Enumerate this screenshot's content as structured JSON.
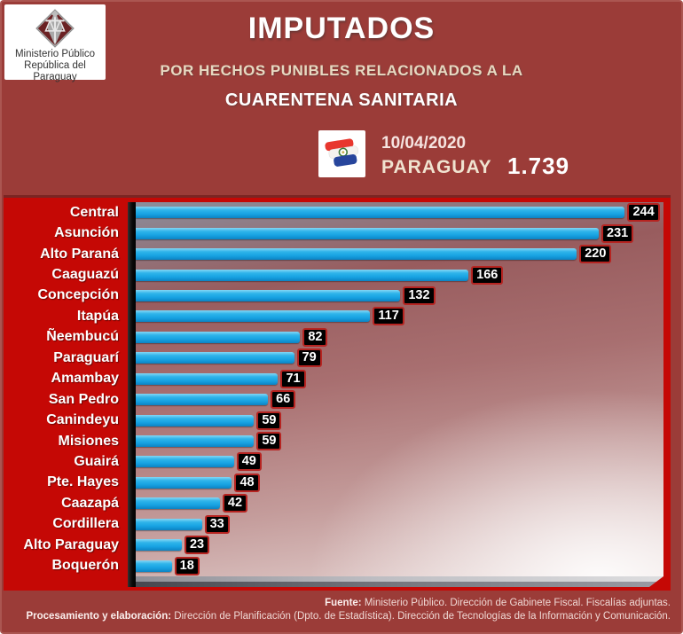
{
  "header": {
    "logo_line1": "Ministerio Público",
    "logo_line2": "República del Paraguay",
    "title": "IMPUTADOS",
    "subtitle1": "POR HECHOS PUNIBLES RELACIONADOS A LA",
    "subtitle2": "CUARENTENA SANITARIA",
    "date": "10/04/2020",
    "country_label": "PARAGUAY",
    "total": "1.739"
  },
  "chart_data": {
    "type": "bar",
    "orientation": "horizontal",
    "title": "IMPUTADOS POR HECHOS PUNIBLES RELACIONADOS A LA CUARENTENA SANITARIA",
    "date": "10/04/2020",
    "region_total_label": "PARAGUAY",
    "region_total": 1739,
    "categories": [
      "Central",
      "Asunción",
      "Alto Paraná",
      "Caaguazú",
      "Concepción",
      "Itapúa",
      "Ñeembucú",
      "Paraguarí",
      "Amambay",
      "San Pedro",
      "Canindeyu",
      "Misiones",
      "Guairá",
      "Pte. Hayes",
      "Caazapá",
      "Cordillera",
      "Alto Paraguay",
      "Boquerón"
    ],
    "values": [
      244,
      231,
      220,
      166,
      132,
      117,
      82,
      79,
      71,
      66,
      59,
      59,
      49,
      48,
      42,
      33,
      23,
      18
    ],
    "xlim": [
      0,
      260
    ],
    "grid": false,
    "legend": false,
    "value_labels": "end-of-bar, white on black box",
    "bar_color": "#1EA7E0",
    "value_label_bg": "#000000"
  },
  "footer": {
    "source_label": "Fuente:",
    "source_text": " Ministerio Público. Dirección de Gabinete Fiscal. Fiscalías adjuntas.",
    "processing_label": "Procesamiento y elaboración:",
    "processing_text": " Dirección de Planificación (Dpto. de Estadística). Dirección de Tecnologías de la Información y Comunicación."
  },
  "icons": {
    "ministry_logo": "scales-of-justice-diamond",
    "flag": "paraguay-flag"
  },
  "colors": {
    "background_maroon": "#9B3C38",
    "chart_frame_red": "#C50805",
    "bar_cyan": "#1EA7E0",
    "axis_black": "#000000",
    "subtitle_cream": "#E7D9C1",
    "title_white": "#FFFFFF"
  }
}
